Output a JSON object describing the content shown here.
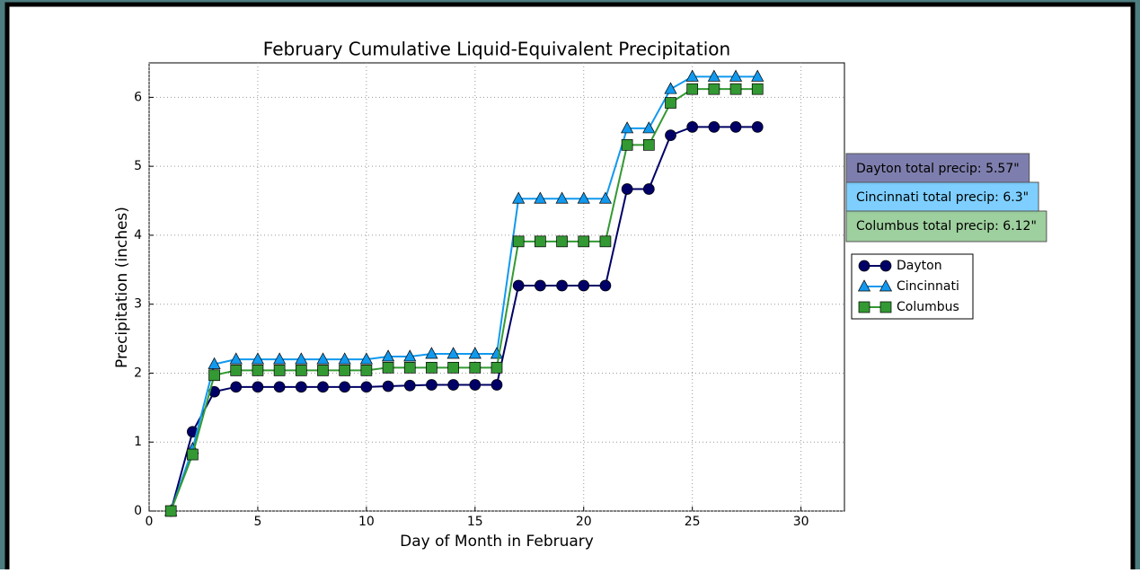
{
  "chart_data": {
    "type": "line",
    "title": "February Cumulative Liquid-Equivalent Precipitation",
    "xlabel": "Day of Month in February",
    "ylabel": "Precipitation (inches)",
    "x": [
      1,
      2,
      3,
      4,
      5,
      6,
      7,
      8,
      9,
      10,
      11,
      12,
      13,
      14,
      15,
      16,
      17,
      18,
      19,
      20,
      21,
      22,
      23,
      24,
      25,
      26,
      27,
      28
    ],
    "series": [
      {
        "name": "Dayton",
        "color": "#000066",
        "marker": "circle",
        "values": [
          0,
          1.15,
          1.73,
          1.8,
          1.8,
          1.8,
          1.8,
          1.8,
          1.8,
          1.8,
          1.81,
          1.82,
          1.83,
          1.83,
          1.83,
          1.83,
          3.27,
          3.27,
          3.27,
          3.27,
          3.27,
          4.67,
          4.67,
          5.45,
          5.57,
          5.57,
          5.57,
          5.57
        ]
      },
      {
        "name": "Cincinnati",
        "color": "#1199ee",
        "marker": "triangle",
        "values": [
          0,
          0.9,
          2.13,
          2.2,
          2.2,
          2.2,
          2.2,
          2.2,
          2.2,
          2.2,
          2.24,
          2.24,
          2.28,
          2.28,
          2.28,
          2.28,
          4.53,
          4.53,
          4.53,
          4.53,
          4.53,
          5.55,
          5.55,
          6.12,
          6.3,
          6.3,
          6.3,
          6.3
        ]
      },
      {
        "name": "Columbus",
        "color": "#339933",
        "marker": "square",
        "values": [
          0,
          0.82,
          1.97,
          2.04,
          2.04,
          2.04,
          2.04,
          2.04,
          2.04,
          2.04,
          2.08,
          2.08,
          2.08,
          2.08,
          2.08,
          2.08,
          3.91,
          3.91,
          3.91,
          3.91,
          3.91,
          5.31,
          5.31,
          5.92,
          6.12,
          6.12,
          6.12,
          6.12
        ]
      }
    ],
    "annotations": [
      {
        "text": "Dayton total precip: 5.57\"",
        "color": "#7777aa"
      },
      {
        "text": "Cincinnati total precip: 6.3\"",
        "color": "#77ccff"
      },
      {
        "text": "Columbus total precip: 6.12\"",
        "color": "#99cc99"
      }
    ],
    "xlim": [
      0,
      32
    ],
    "xticks": [
      0,
      5,
      10,
      15,
      20,
      25,
      30
    ],
    "ylim": [
      0,
      6.5
    ],
    "yticks": [
      0,
      1,
      2,
      3,
      4,
      5,
      6
    ],
    "grid": true,
    "legend": "right"
  }
}
